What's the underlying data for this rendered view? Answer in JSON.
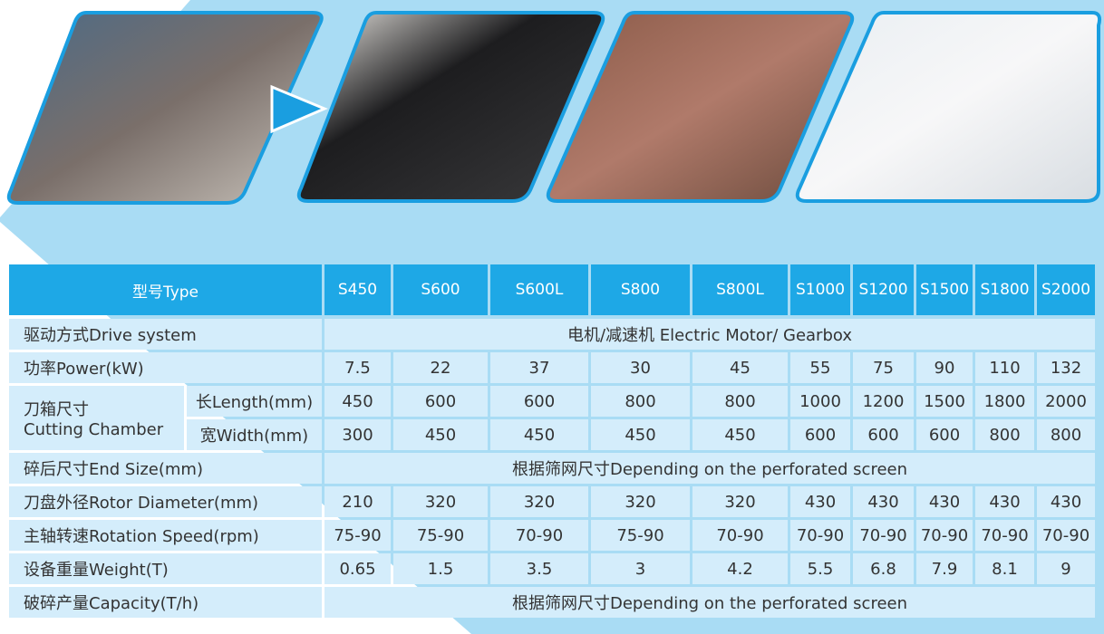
{
  "table": {
    "header": {
      "label": "型号Type",
      "models": [
        "S450",
        "S600",
        "S600L",
        "S800",
        "S800L",
        "S1000",
        "S1200",
        "S1500",
        "S1800",
        "S2000"
      ]
    },
    "drive_system": {
      "label": "驱动方式Drive system",
      "value": "电机/减速机 Electric Motor/ Gearbox"
    },
    "power": {
      "label": "功率Power(kW)",
      "values": [
        7.5,
        22,
        37,
        30,
        45,
        55,
        75,
        90,
        110,
        132
      ]
    },
    "chamber": {
      "label_cn": "刀箱尺寸",
      "label_en": "Cutting Chamber",
      "length_label": "长Length(mm)",
      "length_values": [
        450,
        600,
        600,
        800,
        800,
        1000,
        1200,
        1500,
        1800,
        2000
      ],
      "width_label": "宽Width(mm)",
      "width_values": [
        300,
        450,
        450,
        450,
        450,
        600,
        600,
        600,
        800,
        800
      ]
    },
    "end_size": {
      "label": "碎后尺寸End Size(mm)",
      "value": "根据筛网尺寸Depending on the perforated screen"
    },
    "rotor_diameter": {
      "label": "刀盘外径Rotor Diameter(mm)",
      "values": [
        210,
        320,
        320,
        320,
        320,
        430,
        430,
        430,
        430,
        430
      ]
    },
    "rotation_speed": {
      "label": "主轴转速Rotation Speed(rpm)",
      "values": [
        "75-90",
        "75-90",
        "70-90",
        "75-90",
        "70-90",
        "70-90",
        "70-90",
        "70-90",
        "70-90",
        "70-90"
      ]
    },
    "weight": {
      "label": "设备重量Weight(T)",
      "values": [
        0.65,
        1.5,
        3.5,
        3,
        4.2,
        5.5,
        6.8,
        7.9,
        8.1,
        9
      ]
    },
    "capacity": {
      "label": "破碎产量Capacity(T/h)",
      "value": "根据筛网尺寸Depending on the perforated screen"
    }
  }
}
